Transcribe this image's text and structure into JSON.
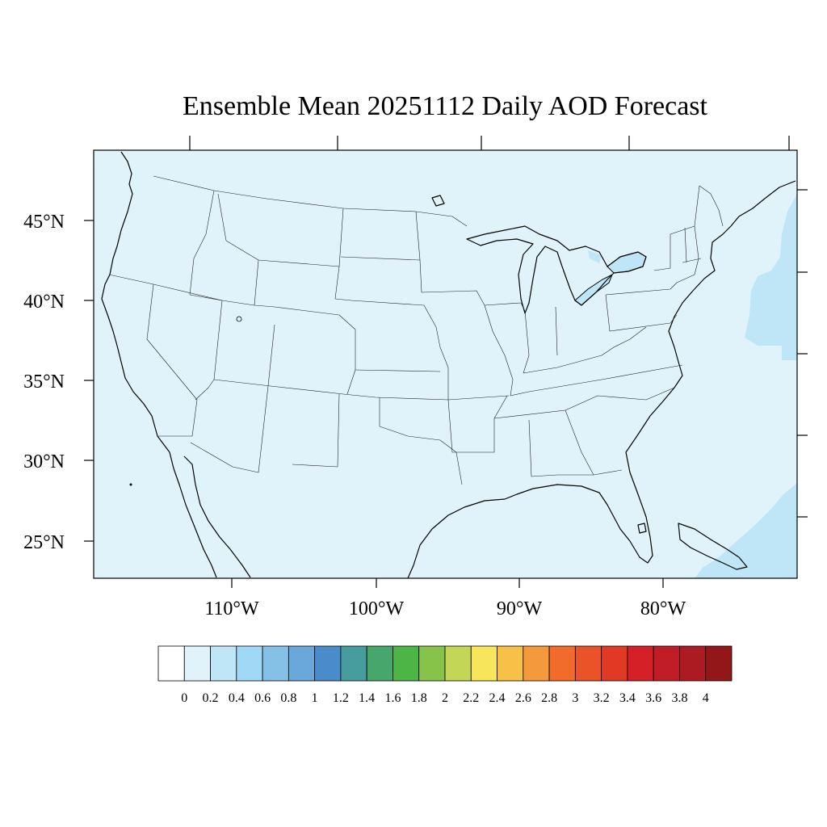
{
  "title": "Ensemble Mean 20251112 Daily AOD Forecast",
  "map": {
    "background_color": "#e0f3fb",
    "elevated_color": "#bfe6f7",
    "lat_labels": [
      "45°N",
      "40°N",
      "35°N",
      "30°N",
      "25°N"
    ],
    "lon_labels": [
      "110°W",
      "100°W",
      "90°W",
      "80°W"
    ]
  },
  "colorbar": {
    "colors": [
      "#ffffff",
      "#e0f3fb",
      "#bfe6f7",
      "#a0d9f5",
      "#85c1e6",
      "#6aa8db",
      "#4a8cc9",
      "#479c9d",
      "#46a66c",
      "#4db545",
      "#86c34a",
      "#c4d655",
      "#f7e65b",
      "#f7c046",
      "#f59a3c",
      "#f16b2a",
      "#ea5228",
      "#e03a25",
      "#d42026",
      "#c01d26",
      "#ac1a22",
      "#931619"
    ],
    "labels": [
      "0",
      "0.2",
      "0.4",
      "0.6",
      "0.8",
      "1",
      "1.2",
      "1.4",
      "1.6",
      "1.8",
      "2",
      "2.2",
      "2.4",
      "2.6",
      "2.8",
      "3",
      "3.2",
      "3.4",
      "3.6",
      "3.8",
      "4"
    ]
  }
}
